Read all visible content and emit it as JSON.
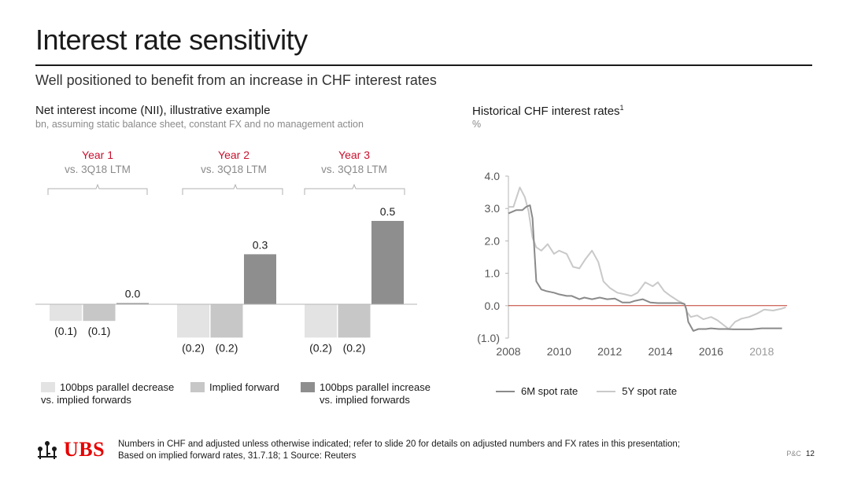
{
  "page": {
    "title": "Interest rate sensitivity",
    "subtitle": "Well positioned to benefit from an increase in CHF interest rates",
    "footer": {
      "line1": "Numbers in CHF and adjusted unless otherwise indicated; refer to slide 20 for details on adjusted numbers and FX rates in this presentation;",
      "line2": "Based on implied forward rates, 31.7.18; 1 Source: Reuters"
    },
    "logo_text": "UBS",
    "tag": "P&C",
    "page_number": "12"
  },
  "colors": {
    "accent_red": "#c8102e",
    "decrease": "#e3e3e3",
    "implied": "#c7c7c7",
    "increase": "#8e8e8e",
    "line_6m": "#8a8a8a",
    "line_5y": "#c9c9c9",
    "zero_line_right": "#c0392b"
  },
  "chart_data": [
    {
      "type": "bar",
      "title": "Net interest income (NII), illustrative example",
      "subtitle": "bn, assuming static balance sheet, constant FX and no management action",
      "groups": [
        {
          "label": "Year 1",
          "sublabel": "vs. 3Q18 LTM"
        },
        {
          "label": "Year 2",
          "sublabel": "vs. 3Q18 LTM"
        },
        {
          "label": "Year 3",
          "sublabel": "vs. 3Q18 LTM"
        }
      ],
      "categories": [
        "Year 1",
        "Year 2",
        "Year 3"
      ],
      "series": [
        {
          "name": "100bps parallel decrease vs. implied forwards",
          "values": [
            -0.1,
            -0.2,
            -0.2
          ],
          "labels": [
            "(0.1)",
            "(0.2)",
            "(0.2)"
          ]
        },
        {
          "name": "Implied forward",
          "values": [
            -0.1,
            -0.2,
            -0.2
          ],
          "labels": [
            "(0.1)",
            "(0.2)",
            "(0.2)"
          ]
        },
        {
          "name": "100bps parallel increase vs. implied forwards",
          "values": [
            0.0,
            0.3,
            0.5
          ],
          "labels": [
            "0.0",
            "0.3",
            "0.5"
          ]
        }
      ],
      "legend": [
        {
          "line1": "100bps parallel decrease",
          "line2": "vs. implied forwards"
        },
        {
          "line1": "Implied forward",
          "line2": ""
        },
        {
          "line1": "100bps parallel increase",
          "line2": "vs. implied forwards"
        }
      ]
    },
    {
      "type": "line",
      "title": "Historical CHF interest rates",
      "title_sup": "1",
      "subtitle": "%",
      "xlim": [
        2008,
        2019
      ],
      "ylim": [
        -1.0,
        4.0
      ],
      "x_ticks": [
        "2008",
        "2010",
        "2012",
        "2014",
        "2016",
        "2018"
      ],
      "y_ticks": [
        "4.0",
        "3.0",
        "2.0",
        "1.0",
        "0.0",
        "(1.0)"
      ],
      "series": [
        {
          "name": "6M spot rate",
          "x": [
            2008.0,
            2008.3,
            2008.55,
            2008.7,
            2008.85,
            2008.95,
            2009.1,
            2009.3,
            2009.5,
            2009.8,
            2010.0,
            2010.3,
            2010.5,
            2010.8,
            2011.0,
            2011.3,
            2011.6,
            2011.9,
            2012.2,
            2012.5,
            2012.8,
            2013.0,
            2013.3,
            2013.6,
            2013.9,
            2014.2,
            2014.5,
            2014.8,
            2014.95,
            2015.02,
            2015.1,
            2015.3,
            2015.5,
            2015.8,
            2016.0,
            2016.3,
            2016.6,
            2016.9,
            2017.2,
            2017.6,
            2018.0,
            2018.4,
            2018.8
          ],
          "y": [
            2.85,
            2.95,
            2.95,
            3.05,
            3.1,
            2.7,
            0.75,
            0.5,
            0.45,
            0.4,
            0.35,
            0.3,
            0.3,
            0.2,
            0.25,
            0.2,
            0.25,
            0.2,
            0.22,
            0.1,
            0.1,
            0.15,
            0.2,
            0.1,
            0.08,
            0.08,
            0.08,
            0.08,
            0.05,
            -0.1,
            -0.5,
            -0.78,
            -0.72,
            -0.72,
            -0.7,
            -0.72,
            -0.72,
            -0.73,
            -0.73,
            -0.73,
            -0.7,
            -0.7,
            -0.7
          ]
        },
        {
          "name": "5Y spot rate",
          "x": [
            2008.0,
            2008.2,
            2008.45,
            2008.65,
            2008.8,
            2008.95,
            2009.1,
            2009.3,
            2009.55,
            2009.8,
            2010.0,
            2010.3,
            2010.55,
            2010.8,
            2011.05,
            2011.3,
            2011.55,
            2011.75,
            2012.0,
            2012.3,
            2012.6,
            2012.85,
            2013.1,
            2013.4,
            2013.7,
            2013.9,
            2014.15,
            2014.4,
            2014.7,
            2014.95,
            2015.05,
            2015.2,
            2015.45,
            2015.7,
            2016.0,
            2016.25,
            2016.5,
            2016.7,
            2016.95,
            2017.2,
            2017.5,
            2017.8,
            2018.1,
            2018.45,
            2018.75,
            2018.95
          ],
          "y": [
            3.05,
            3.05,
            3.65,
            3.35,
            2.9,
            2.1,
            1.8,
            1.7,
            1.9,
            1.6,
            1.7,
            1.6,
            1.2,
            1.15,
            1.45,
            1.7,
            1.35,
            0.75,
            0.55,
            0.4,
            0.35,
            0.3,
            0.4,
            0.72,
            0.6,
            0.72,
            0.45,
            0.3,
            0.15,
            0.05,
            -0.2,
            -0.35,
            -0.3,
            -0.42,
            -0.35,
            -0.45,
            -0.6,
            -0.72,
            -0.5,
            -0.4,
            -0.35,
            -0.25,
            -0.12,
            -0.15,
            -0.1,
            -0.05
          ]
        }
      ],
      "legend": [
        "6M spot rate",
        "5Y spot rate"
      ]
    }
  ]
}
